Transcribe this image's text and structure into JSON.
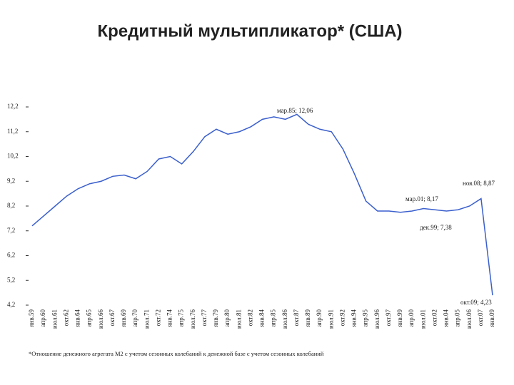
{
  "chart_data": {
    "type": "line",
    "title": "Кредитный мультипликатор* (США)",
    "categories": [
      "янв.59",
      "апр.60",
      "июл.61",
      "окт.62",
      "янв.64",
      "апр.65",
      "июл.66",
      "окт.67",
      "янв.69",
      "апр.70",
      "июл.71",
      "окт.72",
      "янв.74",
      "апр.75",
      "июл.76",
      "окт.77",
      "янв.79",
      "апр.80",
      "июл.81",
      "окт.82",
      "янв.84",
      "апр.85",
      "июл.86",
      "окт.87",
      "янв.89",
      "апр.90",
      "июл.91",
      "окт.92",
      "янв.94",
      "апр.95",
      "июл.96",
      "окт.97",
      "янв.99",
      "апр.00",
      "июл.01",
      "окт.02",
      "янв.04",
      "апр.05",
      "июл.06",
      "окт.07",
      "янв.09"
    ],
    "series": [
      {
        "name": "Кредитный мультипликатор",
        "color": "#3a5fcd",
        "values": [
          7.4,
          7.8,
          8.2,
          8.6,
          8.9,
          9.1,
          9.2,
          9.4,
          9.45,
          9.3,
          9.6,
          10.1,
          10.2,
          9.9,
          10.4,
          11.0,
          11.3,
          11.1,
          11.2,
          11.4,
          11.7,
          11.8,
          11.7,
          11.9,
          11.5,
          11.3,
          11.2,
          10.5,
          9.5,
          8.4,
          8.0,
          8.0,
          7.95,
          8.0,
          8.1,
          8.05,
          8.0,
          8.05,
          8.2,
          8.5,
          4.6
        ]
      }
    ],
    "ylim": [
      4.2,
      12.2
    ],
    "yticks": [
      {
        "value": 4.2,
        "label": "4,2"
      },
      {
        "value": 5.2,
        "label": "5,2"
      },
      {
        "value": 6.2,
        "label": "6,2"
      },
      {
        "value": 7.2,
        "label": "7,2"
      },
      {
        "value": 8.2,
        "label": "8,2"
      },
      {
        "value": 9.2,
        "label": "9,2"
      },
      {
        "value": 10.2,
        "label": "10,2"
      },
      {
        "value": 11.2,
        "label": "11,2"
      },
      {
        "value": 12.2,
        "label": "12,2"
      }
    ],
    "annotations": [
      "мар.85; 12,06",
      "мар.01; 8,17",
      "дек.99; 7,38",
      "ноя.08; 8,87",
      "окт.09; 4,23"
    ],
    "footnote": "*Отношение денежного агрегата М2 с учетом сезонных колебаний к денежной базе с учетом сезонных колебаний"
  }
}
